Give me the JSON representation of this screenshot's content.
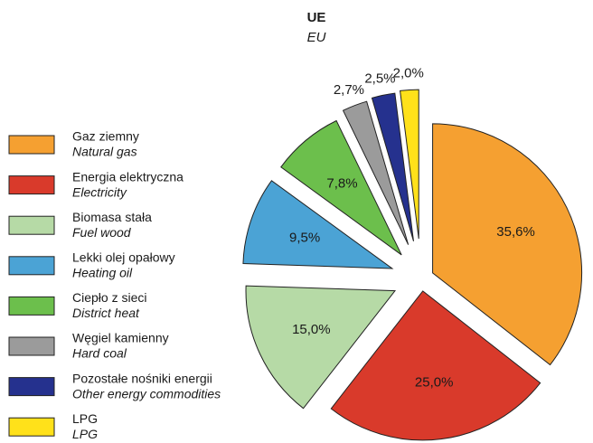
{
  "chart_data": {
    "type": "pie",
    "title": "UE",
    "subtitle": "EU",
    "categories": [
      "Gaz ziemny",
      "Energia elektryczna",
      "Biomasa stała",
      "Lekki olej opałowy",
      "Ciepło z sieci",
      "Węgiel kamienny",
      "Pozostałe nośniki energii",
      "LPG"
    ],
    "categories_en": [
      "Natural gas",
      "Electricity",
      "Fuel wood",
      "Heating oil",
      "District heat",
      "Hard coal",
      "Other energy commodities",
      "LPG"
    ],
    "values": [
      35.6,
      25.0,
      15.0,
      9.5,
      7.8,
      2.7,
      2.5,
      2.0
    ],
    "value_labels": [
      "35,6%",
      "25,0%",
      "15,0%",
      "9,5%",
      "7,8%",
      "2,7%",
      "2,5%",
      "2,0%"
    ],
    "colors": [
      "#f5a031",
      "#d93a2b",
      "#b6daa6",
      "#4ba3d5",
      "#6cbf4c",
      "#9b9b9b",
      "#25318e",
      "#ffe11a"
    ]
  }
}
